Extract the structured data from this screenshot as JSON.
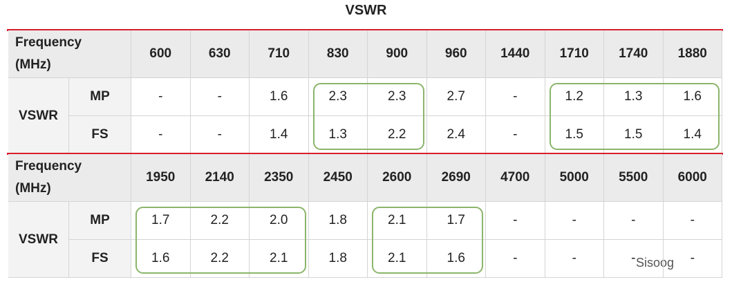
{
  "title": "VSWR",
  "blocks": [
    {
      "header_label": "Frequency (MHz)",
      "group_label": "VSWR",
      "frequencies": [
        600,
        630,
        710,
        830,
        900,
        960,
        1440,
        1710,
        1740,
        1880
      ],
      "rows": [
        {
          "label": "MP",
          "values": [
            "-",
            "-",
            "1.6",
            "2.3",
            "2.3",
            "2.7",
            "-",
            "1.2",
            "1.3",
            "1.6"
          ]
        },
        {
          "label": "FS",
          "values": [
            "-",
            "-",
            "1.4",
            "1.3",
            "2.2",
            "2.4",
            "-",
            "1.5",
            "1.5",
            "1.4"
          ]
        }
      ]
    },
    {
      "header_label": "Frequency (MHz)",
      "group_label": "VSWR",
      "frequencies": [
        1950,
        2140,
        2350,
        2450,
        2600,
        2690,
        4700,
        5000,
        5500,
        6000
      ],
      "rows": [
        {
          "label": "MP",
          "values": [
            "1.7",
            "2.2",
            "2.0",
            "1.8",
            "2.1",
            "1.7",
            "-",
            "-",
            "-",
            "-"
          ]
        },
        {
          "label": "FS",
          "values": [
            "1.6",
            "2.2",
            "2.1",
            "1.8",
            "2.1",
            "1.6",
            "-",
            "-",
            "-",
            "-"
          ]
        }
      ]
    }
  ],
  "watermark": "Sisoog"
}
